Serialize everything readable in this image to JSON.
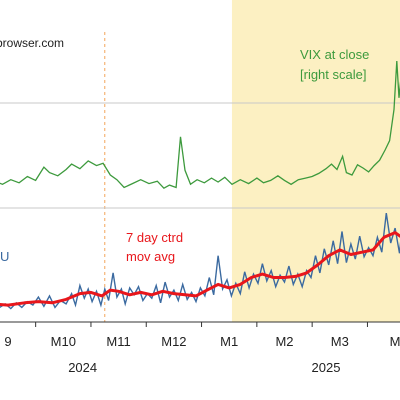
{
  "chart_data": {
    "type": "line",
    "source_label": "browser.com",
    "annotations": {
      "vix": [
        "VIX at close",
        "[right scale]"
      ],
      "mov_avg": [
        "7 day ctrd",
        "mov avg"
      ],
      "left_series_fragment": "U"
    },
    "x_months": [
      "9",
      "M10",
      "M11",
      "M12",
      "M1",
      "M2",
      "M3",
      "M"
    ],
    "x_years": [
      "2024",
      "2025"
    ],
    "shaded_region": {
      "from_month_index": 4.05,
      "to": "end"
    },
    "dashed_marker_month_index": 1.75,
    "colors": {
      "daily_series": "#3b6aa0",
      "moving_average": "#e8161b",
      "vix": "#3d9a3d",
      "shade": "#fcf0c2",
      "marker": "#f2a65a",
      "red_text": "#e8161b",
      "green_text": "#3d9a3d",
      "blue_text": "#3b6aa0"
    },
    "daily_series": [
      {
        "x": -0.55,
        "y": 0.6
      },
      {
        "x": -0.45,
        "y": 0.9
      },
      {
        "x": -0.35,
        "y": 0.5
      },
      {
        "x": -0.25,
        "y": 1.0
      },
      {
        "x": -0.15,
        "y": 0.4
      },
      {
        "x": -0.05,
        "y": 0.7
      },
      {
        "x": 0.05,
        "y": 0.3
      },
      {
        "x": 0.15,
        "y": 0.8
      },
      {
        "x": 0.25,
        "y": 0.4
      },
      {
        "x": 0.35,
        "y": 0.9
      },
      {
        "x": 0.45,
        "y": 0.6
      },
      {
        "x": 0.55,
        "y": 1.3
      },
      {
        "x": 0.65,
        "y": 0.5
      },
      {
        "x": 0.75,
        "y": 1.4
      },
      {
        "x": 0.85,
        "y": 0.4
      },
      {
        "x": 0.95,
        "y": 1.0
      },
      {
        "x": 1.05,
        "y": 0.7
      },
      {
        "x": 1.15,
        "y": 1.6
      },
      {
        "x": 1.22,
        "y": 0.6
      },
      {
        "x": 1.3,
        "y": 2.3
      },
      {
        "x": 1.38,
        "y": 1.2
      },
      {
        "x": 1.45,
        "y": 2.0
      },
      {
        "x": 1.52,
        "y": 0.9
      },
      {
        "x": 1.6,
        "y": 1.8
      },
      {
        "x": 1.68,
        "y": 0.6
      },
      {
        "x": 1.75,
        "y": 2.0
      },
      {
        "x": 1.82,
        "y": 1.0
      },
      {
        "x": 1.9,
        "y": 3.4
      },
      {
        "x": 1.97,
        "y": 1.3
      },
      {
        "x": 2.05,
        "y": 2.0
      },
      {
        "x": 2.12,
        "y": 0.7
      },
      {
        "x": 2.2,
        "y": 2.1
      },
      {
        "x": 2.28,
        "y": 1.5
      },
      {
        "x": 2.36,
        "y": 2.2
      },
      {
        "x": 2.44,
        "y": 1.0
      },
      {
        "x": 2.52,
        "y": 1.6
      },
      {
        "x": 2.6,
        "y": 1.2
      },
      {
        "x": 2.68,
        "y": 2.3
      },
      {
        "x": 2.76,
        "y": 0.8
      },
      {
        "x": 2.84,
        "y": 2.6
      },
      {
        "x": 2.92,
        "y": 1.3
      },
      {
        "x": 3.0,
        "y": 1.9
      },
      {
        "x": 3.08,
        "y": 1.0
      },
      {
        "x": 3.16,
        "y": 2.4
      },
      {
        "x": 3.24,
        "y": 1.1
      },
      {
        "x": 3.32,
        "y": 1.7
      },
      {
        "x": 3.4,
        "y": 0.9
      },
      {
        "x": 3.48,
        "y": 2.1
      },
      {
        "x": 3.56,
        "y": 1.4
      },
      {
        "x": 3.64,
        "y": 3.0
      },
      {
        "x": 3.72,
        "y": 1.5
      },
      {
        "x": 3.8,
        "y": 4.9
      },
      {
        "x": 3.88,
        "y": 2.0
      },
      {
        "x": 3.96,
        "y": 2.8
      },
      {
        "x": 4.04,
        "y": 1.4
      },
      {
        "x": 4.12,
        "y": 2.5
      },
      {
        "x": 4.2,
        "y": 1.6
      },
      {
        "x": 4.28,
        "y": 3.5
      },
      {
        "x": 4.36,
        "y": 2.1
      },
      {
        "x": 4.44,
        "y": 3.3
      },
      {
        "x": 4.52,
        "y": 2.5
      },
      {
        "x": 4.6,
        "y": 4.2
      },
      {
        "x": 4.68,
        "y": 2.7
      },
      {
        "x": 4.76,
        "y": 3.6
      },
      {
        "x": 4.84,
        "y": 2.2
      },
      {
        "x": 4.92,
        "y": 3.2
      },
      {
        "x": 5.0,
        "y": 2.6
      },
      {
        "x": 5.08,
        "y": 4.0
      },
      {
        "x": 5.16,
        "y": 2.4
      },
      {
        "x": 5.24,
        "y": 3.3
      },
      {
        "x": 5.32,
        "y": 2.2
      },
      {
        "x": 5.4,
        "y": 3.6
      },
      {
        "x": 5.48,
        "y": 3.0
      },
      {
        "x": 5.56,
        "y": 4.9
      },
      {
        "x": 5.64,
        "y": 3.4
      },
      {
        "x": 5.72,
        "y": 5.5
      },
      {
        "x": 5.8,
        "y": 4.1
      },
      {
        "x": 5.88,
        "y": 6.2
      },
      {
        "x": 5.96,
        "y": 4.2
      },
      {
        "x": 6.04,
        "y": 7.0
      },
      {
        "x": 6.12,
        "y": 4.3
      },
      {
        "x": 6.2,
        "y": 5.9
      },
      {
        "x": 6.28,
        "y": 4.6
      },
      {
        "x": 6.36,
        "y": 6.6
      },
      {
        "x": 6.44,
        "y": 4.8
      },
      {
        "x": 6.52,
        "y": 5.6
      },
      {
        "x": 6.6,
        "y": 4.9
      },
      {
        "x": 6.68,
        "y": 6.5
      },
      {
        "x": 6.76,
        "y": 5.2
      },
      {
        "x": 6.84,
        "y": 8.6
      },
      {
        "x": 6.92,
        "y": 6.0
      },
      {
        "x": 7.0,
        "y": 7.3
      },
      {
        "x": 7.08,
        "y": 5.1
      },
      {
        "x": 7.16,
        "y": 8.8
      },
      {
        "x": 7.24,
        "y": 6.4
      },
      {
        "x": 7.32,
        "y": 5.0
      }
    ],
    "moving_average": [
      {
        "x": -0.55,
        "y": 0.8
      },
      {
        "x": -0.3,
        "y": 0.7
      },
      {
        "x": 0.0,
        "y": 0.6
      },
      {
        "x": 0.3,
        "y": 0.8
      },
      {
        "x": 0.55,
        "y": 0.9
      },
      {
        "x": 0.8,
        "y": 0.8
      },
      {
        "x": 1.05,
        "y": 1.1
      },
      {
        "x": 1.3,
        "y": 1.6
      },
      {
        "x": 1.5,
        "y": 1.7
      },
      {
        "x": 1.7,
        "y": 1.4
      },
      {
        "x": 1.85,
        "y": 1.9
      },
      {
        "x": 2.0,
        "y": 1.8
      },
      {
        "x": 2.2,
        "y": 1.5
      },
      {
        "x": 2.4,
        "y": 1.7
      },
      {
        "x": 2.6,
        "y": 1.5
      },
      {
        "x": 2.8,
        "y": 1.8
      },
      {
        "x": 3.0,
        "y": 1.6
      },
      {
        "x": 3.2,
        "y": 1.5
      },
      {
        "x": 3.4,
        "y": 1.4
      },
      {
        "x": 3.6,
        "y": 1.9
      },
      {
        "x": 3.8,
        "y": 2.4
      },
      {
        "x": 4.0,
        "y": 2.1
      },
      {
        "x": 4.2,
        "y": 2.4
      },
      {
        "x": 4.4,
        "y": 3.0
      },
      {
        "x": 4.6,
        "y": 3.3
      },
      {
        "x": 4.8,
        "y": 3.0
      },
      {
        "x": 5.0,
        "y": 3.0
      },
      {
        "x": 5.2,
        "y": 3.1
      },
      {
        "x": 5.4,
        "y": 3.4
      },
      {
        "x": 5.6,
        "y": 4.1
      },
      {
        "x": 5.8,
        "y": 4.9
      },
      {
        "x": 6.0,
        "y": 5.4
      },
      {
        "x": 6.2,
        "y": 5.0
      },
      {
        "x": 6.4,
        "y": 5.2
      },
      {
        "x": 6.6,
        "y": 5.4
      },
      {
        "x": 6.8,
        "y": 6.5
      },
      {
        "x": 7.0,
        "y": 6.9
      },
      {
        "x": 7.15,
        "y": 6.4
      },
      {
        "x": 7.32,
        "y": 6.0
      }
    ],
    "vix": [
      {
        "x": -0.55,
        "y": 16.0
      },
      {
        "x": -0.4,
        "y": 15.6
      },
      {
        "x": -0.25,
        "y": 16.2
      },
      {
        "x": -0.1,
        "y": 15.4
      },
      {
        "x": 0.05,
        "y": 16.6
      },
      {
        "x": 0.2,
        "y": 15.8
      },
      {
        "x": 0.35,
        "y": 17.4
      },
      {
        "x": 0.5,
        "y": 16.4
      },
      {
        "x": 0.65,
        "y": 19.8
      },
      {
        "x": 0.75,
        "y": 18.4
      },
      {
        "x": 0.9,
        "y": 17.6
      },
      {
        "x": 1.05,
        "y": 19.2
      },
      {
        "x": 1.15,
        "y": 20.6
      },
      {
        "x": 1.3,
        "y": 19.4
      },
      {
        "x": 1.45,
        "y": 21.4
      },
      {
        "x": 1.6,
        "y": 20.2
      },
      {
        "x": 1.72,
        "y": 20.8
      },
      {
        "x": 1.85,
        "y": 17.8
      },
      {
        "x": 1.97,
        "y": 16.6
      },
      {
        "x": 2.1,
        "y": 14.6
      },
      {
        "x": 2.25,
        "y": 15.6
      },
      {
        "x": 2.4,
        "y": 16.6
      },
      {
        "x": 2.55,
        "y": 15.6
      },
      {
        "x": 2.7,
        "y": 16.2
      },
      {
        "x": 2.82,
        "y": 14.4
      },
      {
        "x": 2.92,
        "y": 15.2
      },
      {
        "x": 3.04,
        "y": 14.6
      },
      {
        "x": 3.12,
        "y": 27.6
      },
      {
        "x": 3.2,
        "y": 19.0
      },
      {
        "x": 3.3,
        "y": 15.4
      },
      {
        "x": 3.42,
        "y": 16.6
      },
      {
        "x": 3.55,
        "y": 15.8
      },
      {
        "x": 3.68,
        "y": 17.0
      },
      {
        "x": 3.8,
        "y": 16.0
      },
      {
        "x": 3.92,
        "y": 17.2
      },
      {
        "x": 4.05,
        "y": 15.4
      },
      {
        "x": 4.2,
        "y": 16.6
      },
      {
        "x": 4.35,
        "y": 15.6
      },
      {
        "x": 4.5,
        "y": 17.0
      },
      {
        "x": 4.62,
        "y": 15.8
      },
      {
        "x": 4.75,
        "y": 16.4
      },
      {
        "x": 4.88,
        "y": 17.6
      },
      {
        "x": 5.0,
        "y": 16.4
      },
      {
        "x": 5.12,
        "y": 15.4
      },
      {
        "x": 5.25,
        "y": 16.6
      },
      {
        "x": 5.38,
        "y": 17.0
      },
      {
        "x": 5.5,
        "y": 17.4
      },
      {
        "x": 5.62,
        "y": 18.2
      },
      {
        "x": 5.75,
        "y": 19.4
      },
      {
        "x": 5.85,
        "y": 20.6
      },
      {
        "x": 5.95,
        "y": 19.2
      },
      {
        "x": 6.05,
        "y": 22.6
      },
      {
        "x": 6.12,
        "y": 18.4
      },
      {
        "x": 6.22,
        "y": 17.8
      },
      {
        "x": 6.32,
        "y": 20.4
      },
      {
        "x": 6.42,
        "y": 19.6
      },
      {
        "x": 6.52,
        "y": 18.6
      },
      {
        "x": 6.62,
        "y": 20.2
      },
      {
        "x": 6.72,
        "y": 21.6
      },
      {
        "x": 6.82,
        "y": 24.2
      },
      {
        "x": 6.9,
        "y": 26.6
      },
      {
        "x": 6.98,
        "y": 34.6
      },
      {
        "x": 7.03,
        "y": 47.0
      },
      {
        "x": 7.07,
        "y": 37.6
      },
      {
        "x": 7.12,
        "y": 44.6
      },
      {
        "x": 7.18,
        "y": 29.6
      },
      {
        "x": 7.24,
        "y": 34.0
      },
      {
        "x": 7.32,
        "y": 31.6
      }
    ]
  }
}
